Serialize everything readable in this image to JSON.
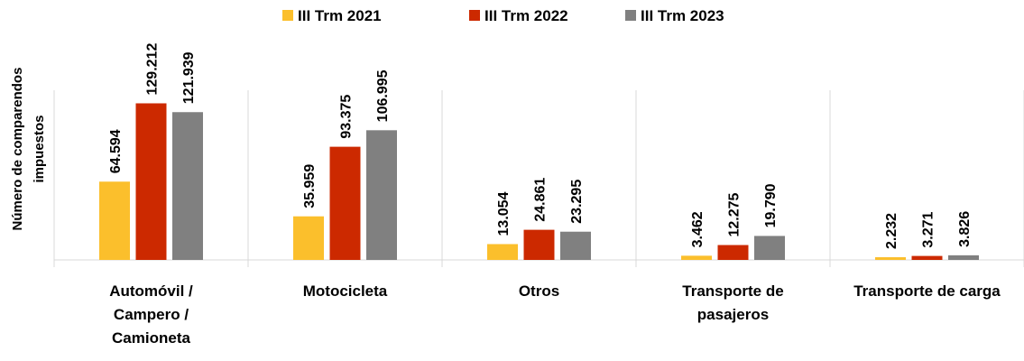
{
  "chart_data": {
    "type": "bar",
    "y_label": [
      "Número de comparendos",
      "impuestos"
    ],
    "categories": [
      "Automóvil / Campero / Camioneta",
      "Motocicleta",
      "Otros",
      "Transporte de pasajeros",
      "Transporte de carga"
    ],
    "series": [
      {
        "name": "III Trm 2021",
        "color": "#fbbf2c",
        "values": [
          64594,
          35959,
          13054,
          3462,
          2232
        ],
        "value_labels": [
          "64.594",
          "35.959",
          "13.054",
          "3.462",
          "2.232"
        ]
      },
      {
        "name": "III Trm 2022",
        "color": "#cc2900",
        "values": [
          129212,
          93375,
          24861,
          12275,
          3271
        ],
        "value_labels": [
          "129.212",
          "93.375",
          "24.861",
          "12.275",
          "3.271"
        ]
      },
      {
        "name": "III Trm 2023",
        "color": "#808080",
        "values": [
          121939,
          106995,
          23295,
          19790,
          3826
        ],
        "value_labels": [
          "121.939",
          "106.995",
          "23.295",
          "19.790",
          "3.826"
        ]
      }
    ],
    "ylim": [
      0,
      140000
    ],
    "legend": "top"
  }
}
